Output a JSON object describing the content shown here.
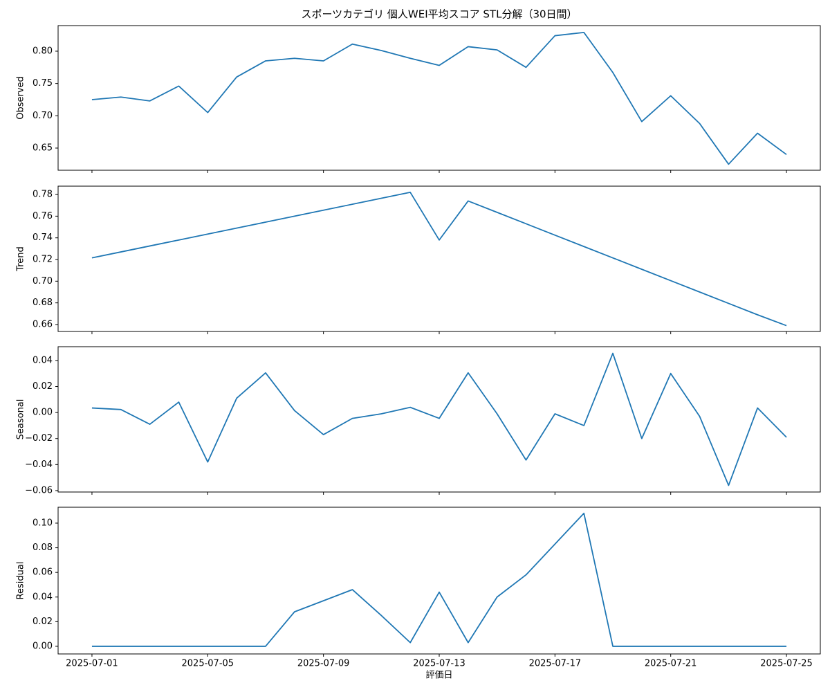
{
  "chart_data": [
    {
      "type": "line",
      "title": "スポーツカテゴリ 個人WEI平均スコア STL分解（30日間）",
      "ylabel": "Observed",
      "x": [
        "2025-07-01",
        "2025-07-02",
        "2025-07-03",
        "2025-07-04",
        "2025-07-05",
        "2025-07-06",
        "2025-07-07",
        "2025-07-08",
        "2025-07-09",
        "2025-07-10",
        "2025-07-11",
        "2025-07-12",
        "2025-07-13",
        "2025-07-14",
        "2025-07-15",
        "2025-07-16",
        "2025-07-17",
        "2025-07-18",
        "2025-07-19",
        "2025-07-20",
        "2025-07-21",
        "2025-07-22",
        "2025-07-23",
        "2025-07-24",
        "2025-07-25"
      ],
      "series": [
        {
          "color": "#1f77b4",
          "values": [
            0.725,
            0.729,
            0.723,
            0.746,
            0.705,
            0.76,
            0.785,
            0.789,
            0.785,
            0.811,
            0.801,
            0.789,
            0.778,
            0.807,
            0.802,
            0.775,
            0.824,
            0.829,
            0.767,
            0.691,
            0.731,
            0.688,
            0.625,
            0.673,
            0.64
          ]
        }
      ],
      "ylim": [
        0.6157,
        0.8396
      ],
      "yticks": [
        {
          "value": 0.65,
          "label": "0.65"
        },
        {
          "value": 0.7,
          "label": "0.70"
        },
        {
          "value": 0.75,
          "label": "0.75"
        },
        {
          "value": 0.8,
          "label": "0.80"
        }
      ]
    },
    {
      "type": "line",
      "ylabel": "Trend",
      "x": [
        "2025-07-01",
        "2025-07-02",
        "2025-07-03",
        "2025-07-04",
        "2025-07-05",
        "2025-07-06",
        "2025-07-07",
        "2025-07-08",
        "2025-07-09",
        "2025-07-10",
        "2025-07-11",
        "2025-07-12",
        "2025-07-13",
        "2025-07-14",
        "2025-07-15",
        "2025-07-16",
        "2025-07-17",
        "2025-07-18",
        "2025-07-19",
        "2025-07-20",
        "2025-07-21",
        "2025-07-22",
        "2025-07-23",
        "2025-07-24",
        "2025-07-25"
      ],
      "series": [
        {
          "color": "#1f77b4",
          "values": [
            0.7215,
            0.727,
            0.7325,
            0.738,
            0.7435,
            0.749,
            0.7545,
            0.76,
            0.7655,
            0.771,
            0.7765,
            0.782,
            0.738,
            0.774,
            0.7635,
            0.753,
            0.7425,
            0.732,
            0.7215,
            0.711,
            0.7005,
            0.69,
            0.6795,
            0.669,
            0.659
          ]
        }
      ],
      "ylim": [
        0.6536,
        0.7877
      ],
      "yticks": [
        {
          "value": 0.66,
          "label": "0.66"
        },
        {
          "value": 0.68,
          "label": "0.68"
        },
        {
          "value": 0.7,
          "label": "0.70"
        },
        {
          "value": 0.72,
          "label": "0.72"
        },
        {
          "value": 0.74,
          "label": "0.74"
        },
        {
          "value": 0.76,
          "label": "0.76"
        },
        {
          "value": 0.78,
          "label": "0.78"
        }
      ]
    },
    {
      "type": "line",
      "ylabel": "Seasonal",
      "x": [
        "2025-07-01",
        "2025-07-02",
        "2025-07-03",
        "2025-07-04",
        "2025-07-05",
        "2025-07-06",
        "2025-07-07",
        "2025-07-08",
        "2025-07-09",
        "2025-07-10",
        "2025-07-11",
        "2025-07-12",
        "2025-07-13",
        "2025-07-14",
        "2025-07-15",
        "2025-07-16",
        "2025-07-17",
        "2025-07-18",
        "2025-07-19",
        "2025-07-20",
        "2025-07-21",
        "2025-07-22",
        "2025-07-23",
        "2025-07-24",
        "2025-07-25"
      ],
      "series": [
        {
          "color": "#1f77b4",
          "values": [
            0.0035,
            0.0023,
            -0.009,
            0.008,
            -0.038,
            0.011,
            0.0305,
            0.0015,
            -0.017,
            -0.0045,
            -0.001,
            0.004,
            -0.0045,
            0.0305,
            -0.001,
            -0.0365,
            -0.001,
            -0.01,
            0.0455,
            -0.02,
            0.03,
            -0.003,
            -0.056,
            0.0035,
            -0.019
          ]
        }
      ],
      "ylim": [
        -0.0611,
        0.0506
      ],
      "yticks": [
        {
          "value": -0.06,
          "label": "−0.06"
        },
        {
          "value": -0.04,
          "label": "−0.04"
        },
        {
          "value": -0.02,
          "label": "−0.02"
        },
        {
          "value": 0,
          "label": "0.00"
        },
        {
          "value": 0.02,
          "label": "0.02"
        },
        {
          "value": 0.04,
          "label": "0.04"
        }
      ]
    },
    {
      "type": "line",
      "ylabel": "Residual",
      "xlabel": "評価日",
      "x": [
        "2025-07-01",
        "2025-07-02",
        "2025-07-03",
        "2025-07-04",
        "2025-07-05",
        "2025-07-06",
        "2025-07-07",
        "2025-07-08",
        "2025-07-09",
        "2025-07-10",
        "2025-07-11",
        "2025-07-12",
        "2025-07-13",
        "2025-07-14",
        "2025-07-15",
        "2025-07-16",
        "2025-07-17",
        "2025-07-18",
        "2025-07-19",
        "2025-07-20",
        "2025-07-21",
        "2025-07-22",
        "2025-07-23",
        "2025-07-24",
        "2025-07-25"
      ],
      "xticks": [
        "2025-07-01",
        "2025-07-05",
        "2025-07-09",
        "2025-07-13",
        "2025-07-17",
        "2025-07-21",
        "2025-07-25"
      ],
      "series": [
        {
          "color": "#1f77b4",
          "values": [
            0,
            0,
            0,
            0,
            0,
            0,
            0,
            0.028,
            0.037,
            0.046,
            0.025,
            0.003,
            0.044,
            0.003,
            0.04,
            0.058,
            0.083,
            0.108,
            0,
            0,
            0,
            0,
            0,
            0,
            0
          ]
        }
      ],
      "ylim": [
        -0.0062,
        0.1129
      ],
      "yticks": [
        {
          "value": 0,
          "label": "0.00"
        },
        {
          "value": 0.02,
          "label": "0.02"
        },
        {
          "value": 0.04,
          "label": "0.04"
        },
        {
          "value": 0.06,
          "label": "0.06"
        },
        {
          "value": 0.08,
          "label": "0.08"
        },
        {
          "value": 0.1,
          "label": "0.10"
        }
      ]
    }
  ]
}
